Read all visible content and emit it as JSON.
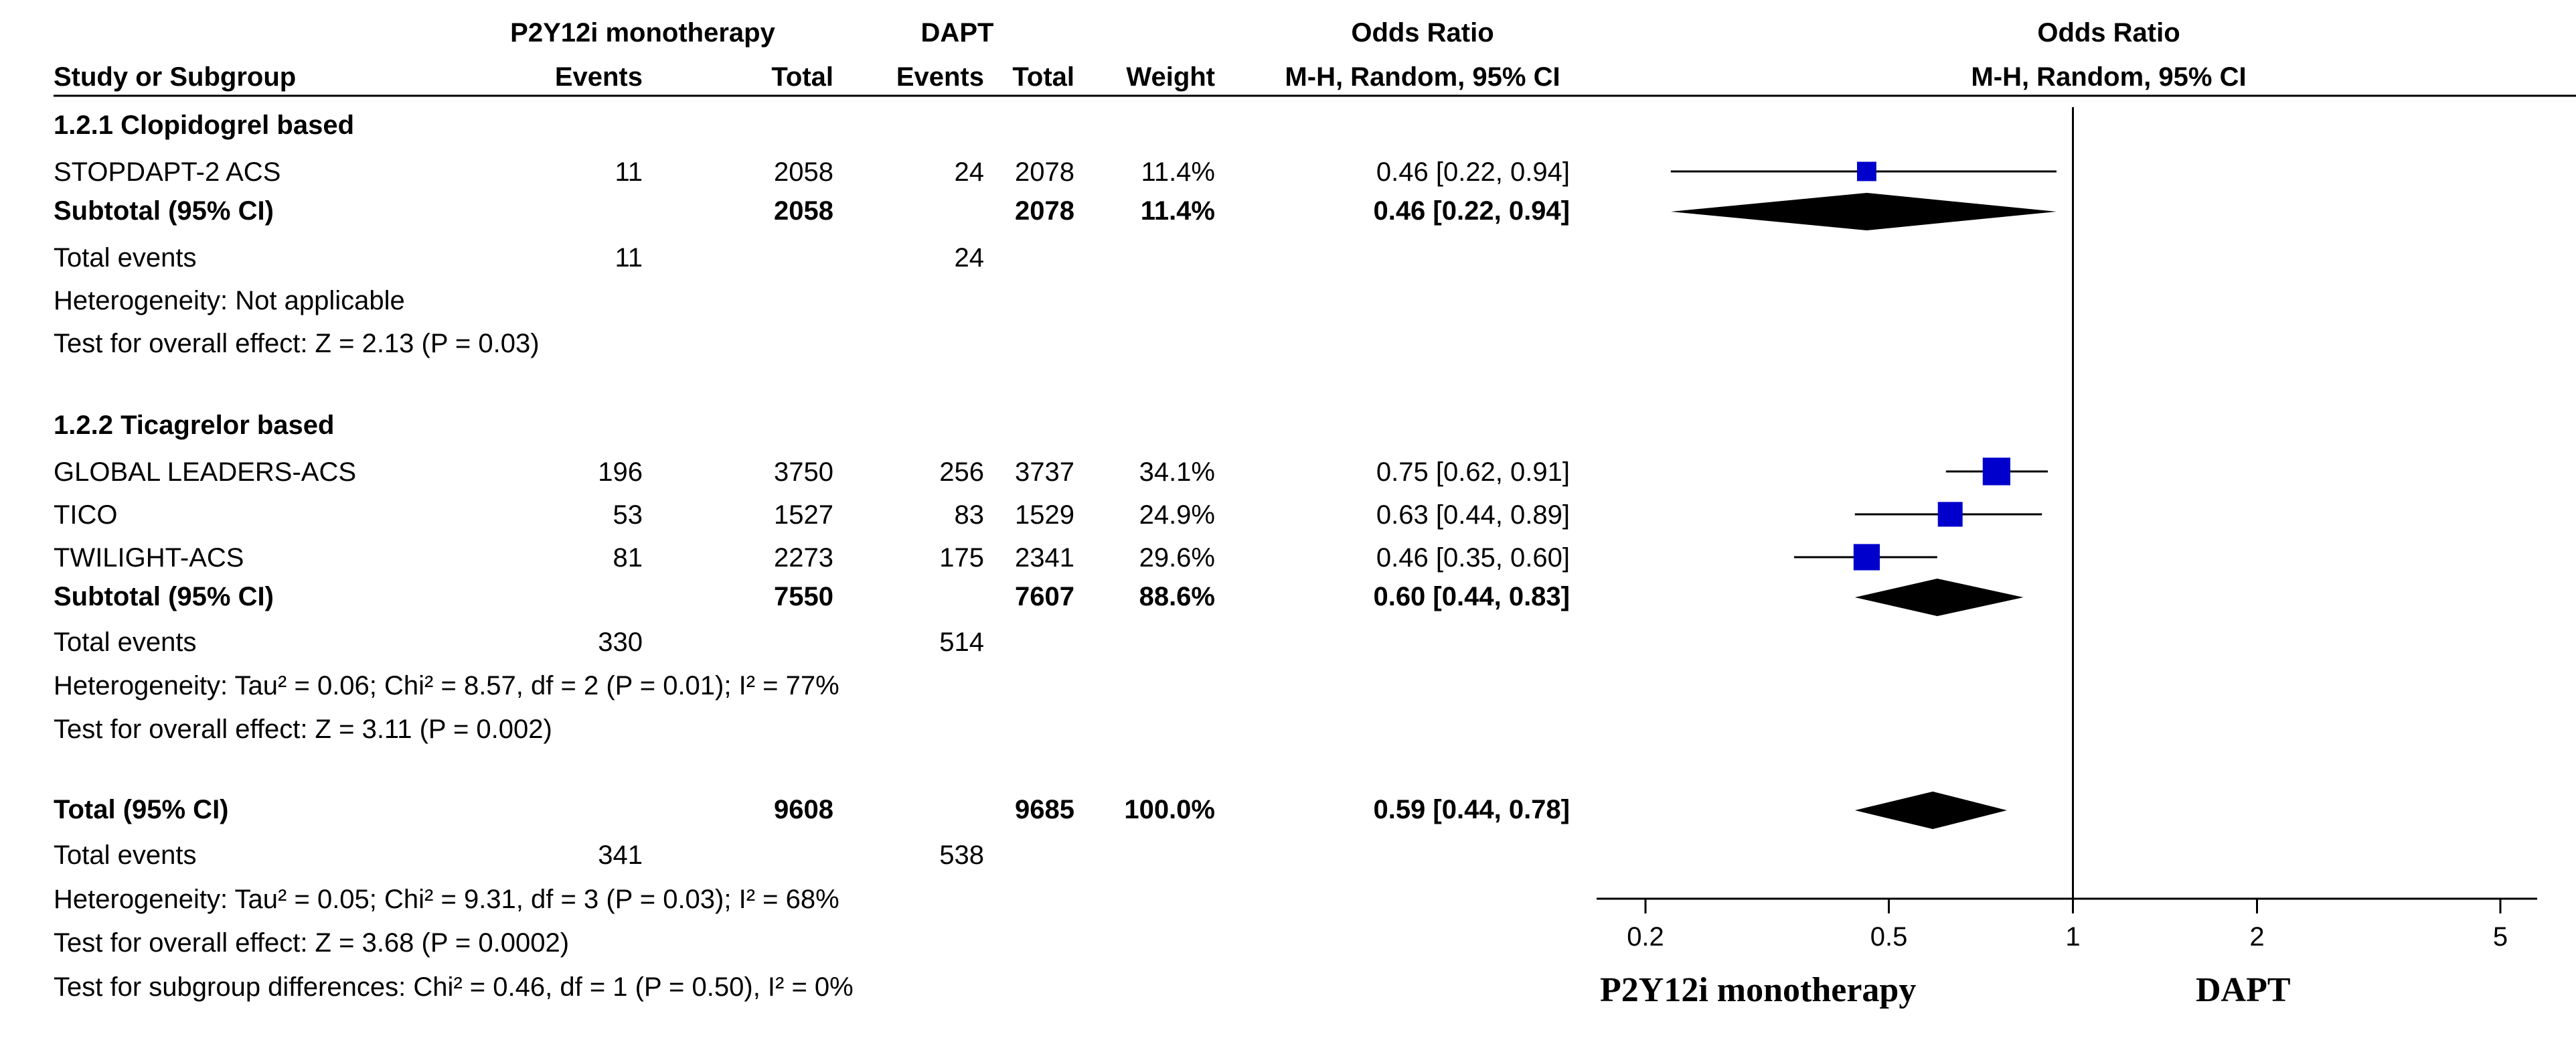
{
  "chart_data": {
    "type": "forest",
    "header": {
      "group1": "P2Y12i monotherapy",
      "group2": "DAPT",
      "or_col_title": "Odds Ratio",
      "or_col_method": "M-H, Random, 95% CI",
      "plot_title": "Odds Ratio",
      "plot_method": "M-H, Random, 95% CI",
      "study_col": "Study or Subgroup",
      "events": "Events",
      "total": "Total",
      "weight": "Weight"
    },
    "subgroups": [
      {
        "title": "1.2.1 Clopidogrel based",
        "studies": [
          {
            "name": "STOPDAPT-2 ACS",
            "e1": "11",
            "t1": "2058",
            "e2": "24",
            "t2": "2078",
            "weight": "11.4%",
            "ci_text": "0.46 [0.22, 0.94]",
            "or": 0.46,
            "lo": 0.22,
            "hi": 0.94,
            "w": 11.4
          }
        ],
        "subtotal": {
          "label": "Subtotal (95% CI)",
          "t1": "2058",
          "t2": "2078",
          "weight": "11.4%",
          "ci_text": "0.46 [0.22, 0.94]",
          "or": 0.46,
          "lo": 0.22,
          "hi": 0.94
        },
        "total_events": {
          "label": "Total events",
          "e1": "11",
          "e2": "24"
        },
        "heterogeneity": "Heterogeneity: Not applicable",
        "overall_effect": "Test for overall effect: Z = 2.13 (P = 0.03)"
      },
      {
        "title": "1.2.2 Ticagrelor based",
        "studies": [
          {
            "name": "GLOBAL LEADERS-ACS",
            "e1": "196",
            "t1": "3750",
            "e2": "256",
            "t2": "3737",
            "weight": "34.1%",
            "ci_text": "0.75 [0.62, 0.91]",
            "or": 0.75,
            "lo": 0.62,
            "hi": 0.91,
            "w": 34.1
          },
          {
            "name": "TICO",
            "e1": "53",
            "t1": "1527",
            "e2": "83",
            "t2": "1529",
            "weight": "24.9%",
            "ci_text": "0.63 [0.44, 0.89]",
            "or": 0.63,
            "lo": 0.44,
            "hi": 0.89,
            "w": 24.9
          },
          {
            "name": "TWILIGHT-ACS",
            "e1": "81",
            "t1": "2273",
            "e2": "175",
            "t2": "2341",
            "weight": "29.6%",
            "ci_text": "0.46 [0.35, 0.60]",
            "or": 0.46,
            "lo": 0.35,
            "hi": 0.6,
            "w": 29.6
          }
        ],
        "subtotal": {
          "label": "Subtotal (95% CI)",
          "t1": "7550",
          "t2": "7607",
          "weight": "88.6%",
          "ci_text": "0.60 [0.44, 0.83]",
          "or": 0.6,
          "lo": 0.44,
          "hi": 0.83
        },
        "total_events": {
          "label": "Total events",
          "e1": "330",
          "e2": "514"
        },
        "heterogeneity": "Heterogeneity: Tau² = 0.06; Chi² = 8.57, df = 2 (P = 0.01); I² = 77%",
        "overall_effect": "Test for overall effect: Z = 3.11 (P = 0.002)"
      }
    ],
    "total": {
      "label": "Total (95% CI)",
      "t1": "9608",
      "t2": "9685",
      "weight": "100.0%",
      "ci_text": "0.59 [0.44, 0.78]",
      "or": 0.59,
      "lo": 0.44,
      "hi": 0.78
    },
    "total_events": {
      "label": "Total events",
      "e1": "341",
      "e2": "538"
    },
    "heterogeneity": "Heterogeneity: Tau² = 0.05; Chi² = 9.31, df = 3 (P = 0.03); I² = 68%",
    "overall_effect": "Test for overall effect: Z = 3.68 (P = 0.0002)",
    "subgroup_diff": "Test for subgroup differences: Chi² = 0.46, df = 1 (P = 0.50), I² = 0%",
    "axis": {
      "scale": "log",
      "min": 0.2,
      "max": 5,
      "ticks": [
        0.2,
        0.5,
        1,
        2,
        5
      ],
      "tick_labels": [
        "0.2",
        "0.5",
        "1",
        "2",
        "5"
      ],
      "null_value": 1
    },
    "favours_left": "P2Y12i monotherapy",
    "favours_right": "DAPT",
    "colors": {
      "square": "#0000CC",
      "diamond": "#000000",
      "line": "#000000"
    }
  }
}
